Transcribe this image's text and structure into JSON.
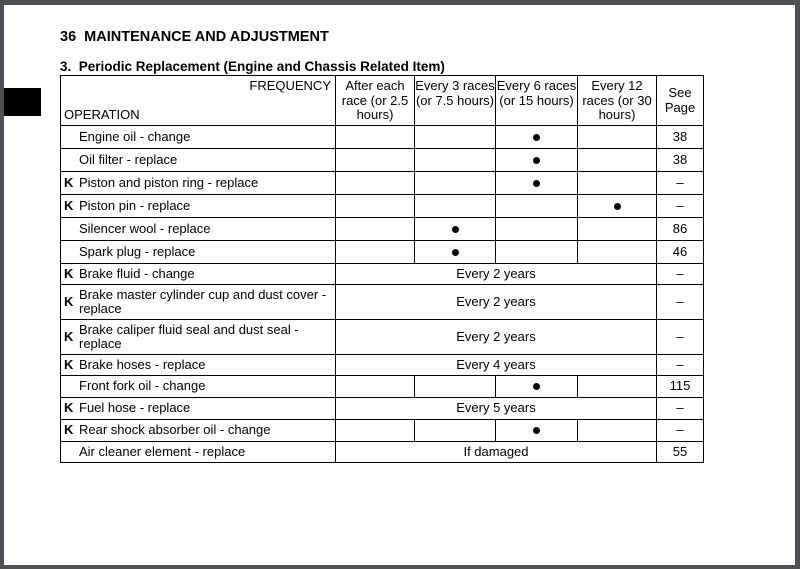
{
  "page_header": "36  MAINTENANCE AND ADJUSTMENT",
  "section_title": "3.  Periodic Replacement (Engine and Chassis Related Item)",
  "table": {
    "frequency_label": "FREQUENCY",
    "operation_label": "OPERATION",
    "columns": [
      "After each race (or 2.5 hours)",
      "Every 3 races (or 7.5 hours)",
      "Every 6 races (or 15 hours)",
      "Every 12 races (or 30 hours)",
      "See Page"
    ],
    "rows": [
      {
        "k": "",
        "op": "Engine oil - change",
        "mark": 2,
        "page": "38"
      },
      {
        "k": "",
        "op": "Oil filter - replace",
        "mark": 2,
        "page": "38"
      },
      {
        "k": "K",
        "op": "Piston and piston ring - replace",
        "mark": 2,
        "page": "–"
      },
      {
        "k": "K",
        "op": "Piston pin - replace",
        "mark": 3,
        "page": "–"
      },
      {
        "k": "",
        "op": "Silencer wool - replace",
        "mark": 1,
        "page": "86"
      },
      {
        "k": "",
        "op": "Spark plug - replace",
        "mark": 1,
        "page": "46"
      },
      {
        "k": "K",
        "op": "Brake fluid - change",
        "span": "Every 2 years",
        "page": "–"
      },
      {
        "k": "K",
        "op": "Brake master cylinder cup and dust cover - replace",
        "span": "Every 2 years",
        "page": "–"
      },
      {
        "k": "K",
        "op": "Brake caliper fluid seal and dust seal - replace",
        "span": "Every 2 years",
        "page": "–"
      },
      {
        "k": "K",
        "op": "Brake hoses - replace",
        "span": "Every 4 years",
        "page": "–"
      },
      {
        "k": "",
        "op": "Front fork oil - change",
        "mark": 2,
        "page": "115"
      },
      {
        "k": "K",
        "op": "Fuel hose - replace",
        "span": "Every 5 years",
        "page": "–"
      },
      {
        "k": "K",
        "op": "Rear shock absorber oil - change",
        "mark": 2,
        "page": "–"
      },
      {
        "k": "",
        "op": "Air cleaner element - replace",
        "span": "If damaged",
        "page": "55"
      }
    ]
  }
}
